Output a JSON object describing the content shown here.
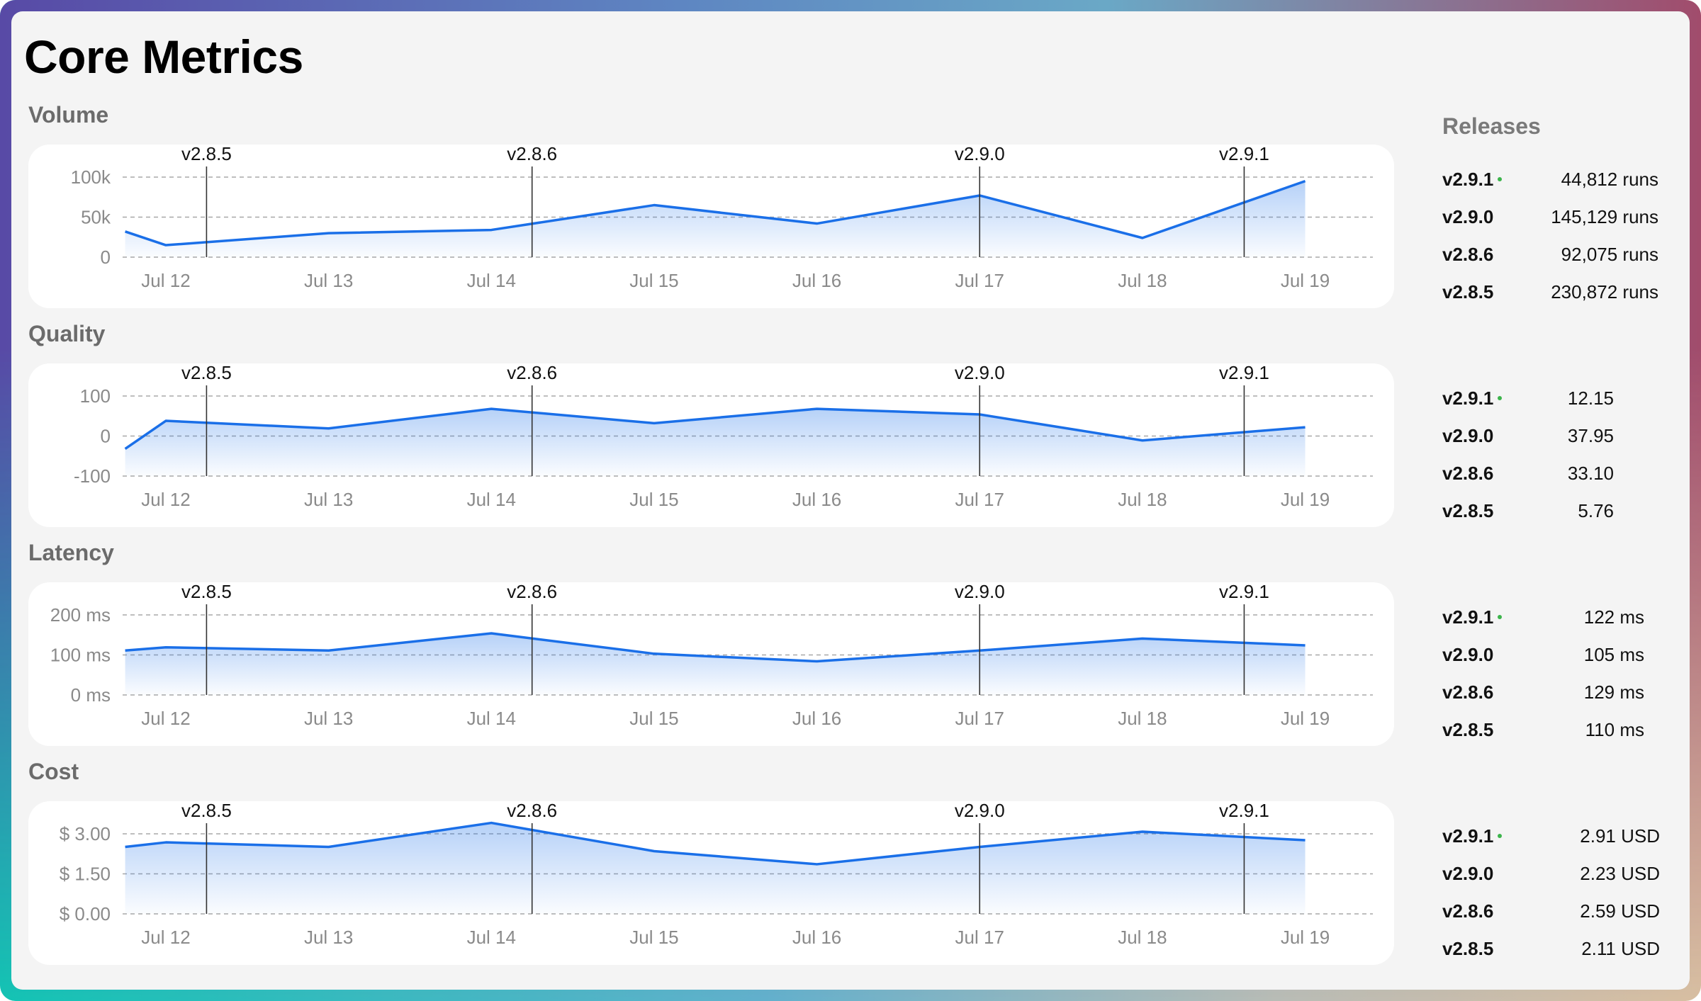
{
  "page": {
    "title": "Core Metrics"
  },
  "colors": {
    "line": "#1a6fe8",
    "fill": "#1a6fe8",
    "release_line": "#333333",
    "grid": "#a8a8a8",
    "current_release_dot": "#3cb44b"
  },
  "releases_heading": "Releases",
  "x_ticks": [
    "Jul 12",
    "Jul 13",
    "Jul 14",
    "Jul 15",
    "Jul 16",
    "Jul 17",
    "Jul 18",
    "Jul 19"
  ],
  "release_markers": [
    {
      "label": "v2.8.5",
      "x": "Jul 12 06:00"
    },
    {
      "label": "v2.8.6",
      "x": "Jul 14 06:00"
    },
    {
      "label": "v2.9.0",
      "x": "Jul 17 00:00"
    },
    {
      "label": "v2.9.1",
      "x": "Jul 18 15:00"
    }
  ],
  "chart_data": [
    {
      "type": "area",
      "title": "Volume",
      "grid": true,
      "xlim": [
        "Jul 11 18:00",
        "Jul 19 12:00"
      ],
      "ylim": [
        0,
        100000
      ],
      "y_ticks": [
        {
          "value": 100000,
          "label": "100k"
        },
        {
          "value": 50000,
          "label": "50k"
        },
        {
          "value": 0,
          "label": "0"
        }
      ],
      "x": [
        "Jul 11 18:00",
        "Jul 12",
        "Jul 13",
        "Jul 14",
        "Jul 15",
        "Jul 16",
        "Jul 17",
        "Jul 18",
        "Jul 19"
      ],
      "values": [
        32000,
        15000,
        30000,
        34000,
        65000,
        42000,
        77000,
        24000,
        95000
      ]
    },
    {
      "type": "area",
      "title": "Quality",
      "grid": true,
      "xlim": [
        "Jul 11 18:00",
        "Jul 19 12:00"
      ],
      "ylim": [
        -100,
        100
      ],
      "y_ticks": [
        {
          "value": 100,
          "label": "100"
        },
        {
          "value": 0,
          "label": "0"
        },
        {
          "value": -100,
          "label": "-100"
        }
      ],
      "x": [
        "Jul 11 18:00",
        "Jul 12",
        "Jul 13",
        "Jul 14",
        "Jul 15",
        "Jul 16",
        "Jul 17",
        "Jul 18",
        "Jul 19"
      ],
      "values": [
        -32,
        38,
        19,
        68,
        32,
        68,
        54,
        -11,
        22
      ]
    },
    {
      "type": "area",
      "title": "Latency",
      "grid": true,
      "xlim": [
        "Jul 11 18:00",
        "Jul 19 12:00"
      ],
      "ylim": [
        0,
        200
      ],
      "y_ticks": [
        {
          "value": 200,
          "label": "200 ms"
        },
        {
          "value": 100,
          "label": "100 ms"
        },
        {
          "value": 0,
          "label": "0 ms"
        }
      ],
      "x": [
        "Jul 11 18:00",
        "Jul 12",
        "Jul 13",
        "Jul 14",
        "Jul 15",
        "Jul 16",
        "Jul 17",
        "Jul 18",
        "Jul 19"
      ],
      "values": [
        111,
        119,
        111,
        154,
        103,
        84,
        111,
        141,
        124
      ]
    },
    {
      "type": "area",
      "title": "Cost",
      "grid": true,
      "xlim": [
        "Jul 11 18:00",
        "Jul 19 12:00"
      ],
      "ylim": [
        0,
        3
      ],
      "y_ticks": [
        {
          "value": 3,
          "label": "$ 3.00"
        },
        {
          "value": 1.5,
          "label": "$ 1.50"
        },
        {
          "value": 0,
          "label": "$ 0.00"
        }
      ],
      "x": [
        "Jul 11 18:00",
        "Jul 12",
        "Jul 13",
        "Jul 14",
        "Jul 15",
        "Jul 16",
        "Jul 17",
        "Jul 18",
        "Jul 19"
      ],
      "values": [
        2.51,
        2.68,
        2.51,
        3.41,
        2.35,
        1.86,
        2.51,
        3.08,
        2.76
      ]
    }
  ],
  "release_stats": [
    {
      "section": "Volume",
      "rows": [
        {
          "version": "v2.9.1",
          "current": true,
          "value": "44,812 runs"
        },
        {
          "version": "v2.9.0",
          "current": false,
          "value": "145,129 runs"
        },
        {
          "version": "v2.8.6",
          "current": false,
          "value": "92,075 runs"
        },
        {
          "version": "v2.8.5",
          "current": false,
          "value": "230,872 runs"
        }
      ]
    },
    {
      "section": "Quality",
      "rows": [
        {
          "version": "v2.9.1",
          "current": true,
          "value": "12.15"
        },
        {
          "version": "v2.9.0",
          "current": false,
          "value": "37.95"
        },
        {
          "version": "v2.8.6",
          "current": false,
          "value": "33.10"
        },
        {
          "version": "v2.8.5",
          "current": false,
          "value": "5.76"
        }
      ]
    },
    {
      "section": "Latency",
      "rows": [
        {
          "version": "v2.9.1",
          "current": true,
          "value": "122 ms"
        },
        {
          "version": "v2.9.0",
          "current": false,
          "value": "105 ms"
        },
        {
          "version": "v2.8.6",
          "current": false,
          "value": "129 ms"
        },
        {
          "version": "v2.8.5",
          "current": false,
          "value": "110 ms"
        }
      ]
    },
    {
      "section": "Cost",
      "rows": [
        {
          "version": "v2.9.1",
          "current": true,
          "value": "2.91 USD"
        },
        {
          "version": "v2.9.0",
          "current": false,
          "value": "2.23 USD"
        },
        {
          "version": "v2.8.6",
          "current": false,
          "value": "2.59 USD"
        },
        {
          "version": "v2.8.5",
          "current": false,
          "value": "2.11 USD"
        }
      ]
    }
  ]
}
